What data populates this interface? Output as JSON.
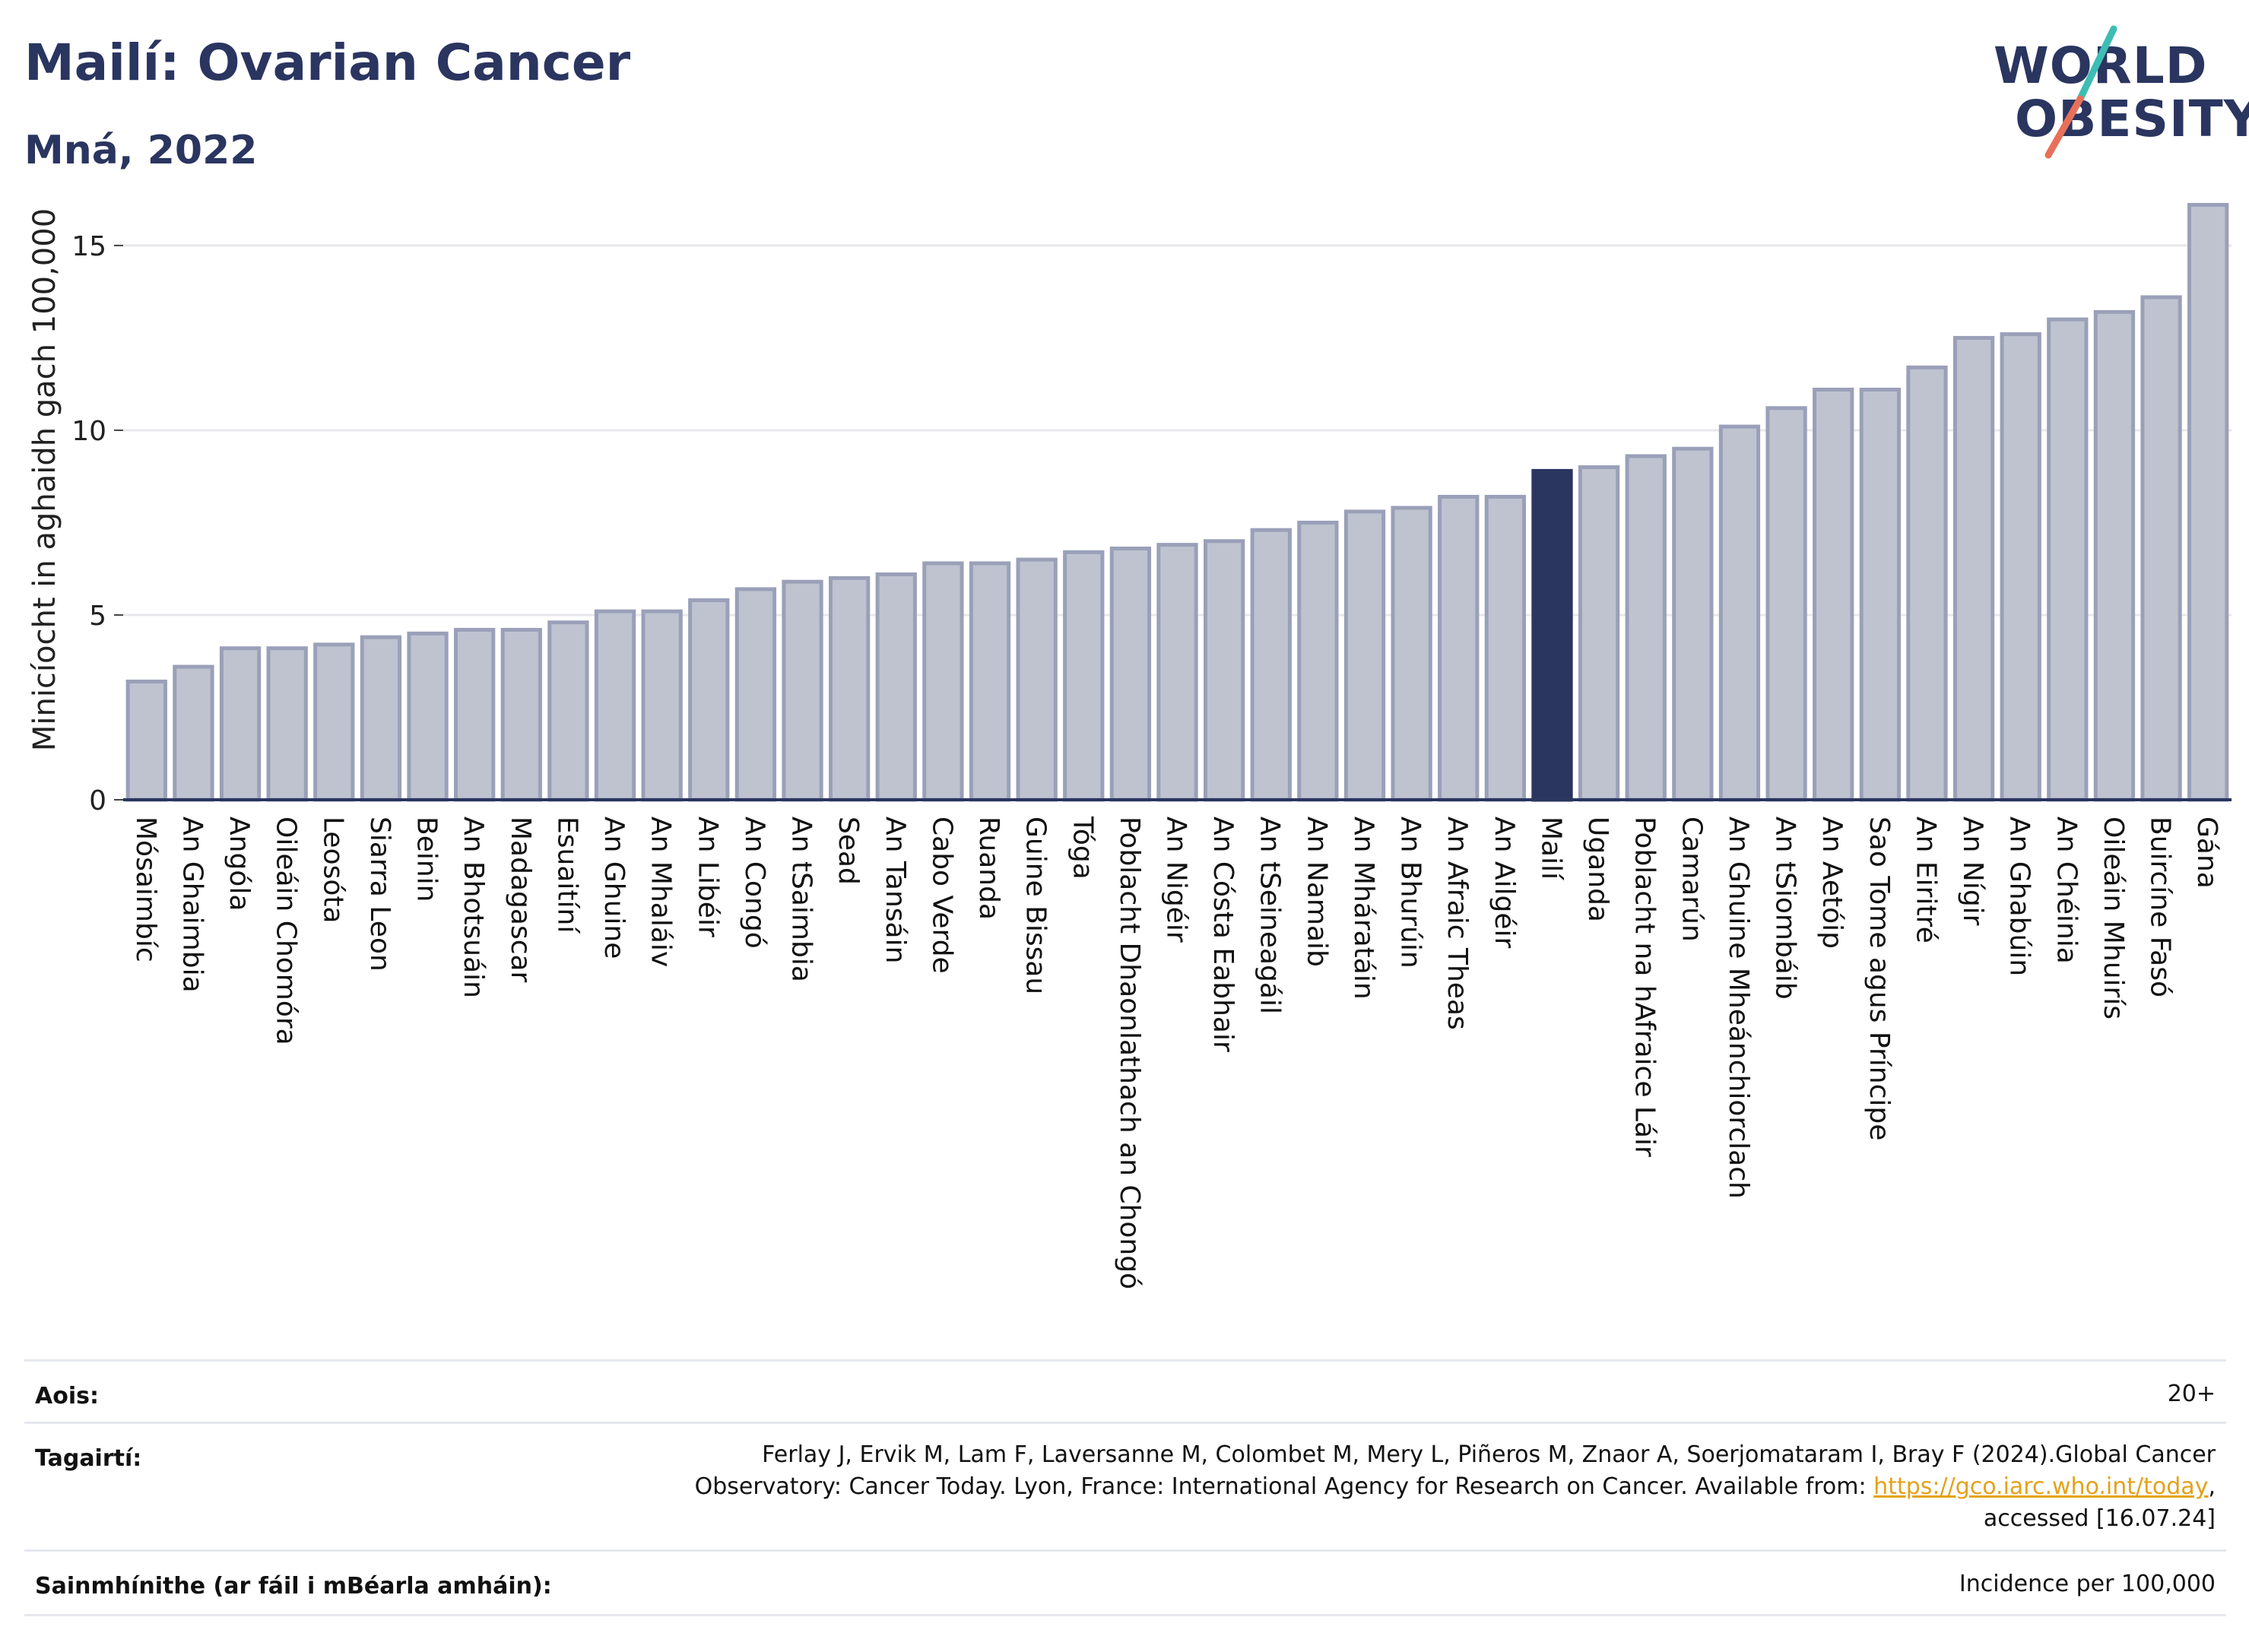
{
  "header": {
    "title": "Mailí: Ovarian Cancer",
    "subtitle": "Mná, 2022"
  },
  "logo": {
    "line1": "WORLD",
    "line2": "OBESITY",
    "slash_colors": [
      "#3dbdb4",
      "#e8705a"
    ]
  },
  "chart_data": {
    "type": "bar",
    "title": "",
    "xlabel": "",
    "ylabel": "Minicíocht in aghaidh gach 100,000",
    "ylim": [
      0,
      16.5
    ],
    "yticks": [
      0,
      5,
      10,
      15
    ],
    "grid": true,
    "highlight": "Mailí",
    "colors": {
      "bar": "#bfc3d0",
      "bar_edge": "#9aa0b8",
      "highlight": "#2a3560",
      "grid": "#e8e8ec",
      "axis": "#2a3560"
    },
    "categories": [
      "Mósaimbíc",
      "An Ghaimbia",
      "Angóla",
      "Oileáin Chomóra",
      "Leosóta",
      "Siarra Leon",
      "Beinin",
      "An Bhotsuáin",
      "Madagascar",
      "Esuaitíní",
      "An Ghuine",
      "An Mhaláiv",
      "An Libéir",
      "An Congó",
      "An tSaimbia",
      "Sead",
      "An Tansáin",
      "Cabo Verde",
      "Ruanda",
      "Guine Bissau",
      "Tóga",
      "Poblacht Dhaonlathach an Chongó",
      "An Nigéir",
      "An Cósta Eabhair",
      "An tSeineagáil",
      "An Namaib",
      "An Mháratáin",
      "An Bhurúin",
      "An Afraic Theas",
      "An Ailgéir",
      "Mailí",
      "Uganda",
      "Poblacht na hAfraice Láir",
      "Camarún",
      "An Ghuine Mheánchiorclach",
      "An tSiombáib",
      "An Aetóip",
      "Sao Tome agus Príncipe",
      "An Eiritré",
      "An Nígir",
      "An Ghabúin",
      "An Chéinia",
      "Oileáin Mhuirís",
      "Buircíne Fasó",
      "Gána"
    ],
    "values": [
      3.2,
      3.6,
      4.1,
      4.1,
      4.2,
      4.4,
      4.5,
      4.6,
      4.6,
      4.8,
      5.1,
      5.1,
      5.4,
      5.7,
      5.9,
      6.0,
      6.1,
      6.4,
      6.4,
      6.5,
      6.7,
      6.8,
      6.9,
      7.0,
      7.3,
      7.5,
      7.8,
      7.9,
      8.2,
      8.2,
      8.9,
      9.0,
      9.3,
      9.5,
      10.1,
      10.6,
      11.1,
      11.1,
      11.7,
      12.5,
      12.6,
      13.0,
      13.2,
      13.6,
      16.1
    ]
  },
  "meta": {
    "age_label": "Aois:",
    "age_value": "20+",
    "refs_label": "Tagairtí:",
    "refs_line1": "Ferlay J, Ervik M, Lam F, Laversanne M, Colombet M, Mery L, Piñeros M, Znaor A, Soerjomataram I, Bray F (2024).Global Cancer",
    "refs_line2_pre": "Observatory: Cancer Today. Lyon, France: International Agency for Research on Cancer. Available from: ",
    "refs_link": "https://gco.iarc.who.int/today",
    "refs_line2_post": ",",
    "refs_line3": "accessed [16.07.24]",
    "defs_label": "Sainmhínithe (ar fáil i mBéarla amháin):",
    "defs_value": "Incidence per 100,000"
  }
}
